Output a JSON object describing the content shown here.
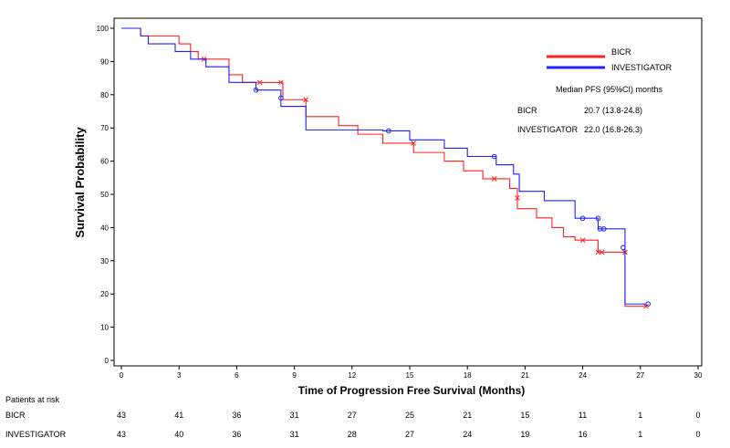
{
  "chart_data": {
    "type": "line",
    "step": true,
    "xlabel": "Time of Progression Free Survival (Months)",
    "ylabel": "Survival Probability",
    "xlim": [
      0,
      30
    ],
    "ylim": [
      0,
      100
    ],
    "xticks": [
      0,
      3,
      6,
      9,
      12,
      15,
      18,
      21,
      24,
      27,
      30
    ],
    "yticks": [
      0,
      10,
      20,
      30,
      40,
      50,
      60,
      70,
      80,
      90,
      100
    ],
    "grid": false,
    "legend_position": "top-right",
    "series": [
      {
        "name": "BICR",
        "color": "#ff2020",
        "x": [
          0,
          1.0,
          1.4,
          3.0,
          3.6,
          4.0,
          5.6,
          6.3,
          7.2,
          8.4,
          9.6,
          11.3,
          12.3,
          13.6,
          15.2,
          16.8,
          17.8,
          18.8,
          20.2,
          20.6,
          21.6,
          22.4,
          23.0,
          23.6,
          24.8,
          26.2,
          27.3
        ],
        "y": [
          100,
          97.7,
          97.7,
          95.3,
          93.0,
          90.7,
          86.0,
          83.7,
          83.7,
          78.5,
          73.4,
          70.7,
          68.1,
          65.4,
          62.6,
          60.0,
          57.1,
          54.7,
          51.8,
          45.7,
          42.9,
          40.0,
          37.2,
          36.2,
          32.6,
          16.3,
          16.3
        ],
        "censor_x": [
          4.3,
          7.2,
          8.3,
          9.6,
          15.2,
          19.4,
          20.6,
          24.0,
          24.8,
          25.0,
          26.2,
          27.3
        ],
        "censor_y": [
          90.7,
          83.7,
          83.7,
          78.5,
          65.4,
          54.7,
          48.9,
          36.2,
          32.6,
          32.6,
          32.6,
          16.3
        ]
      },
      {
        "name": "INVESTIGATOR",
        "color": "#2020ff",
        "x": [
          0,
          1.0,
          1.4,
          2.8,
          3.6,
          4.4,
          5.6,
          7.0,
          8.3,
          9.6,
          12.0,
          13.6,
          15.0,
          16.8,
          18.0,
          19.5,
          20.4,
          20.7,
          22.0,
          23.6,
          24.8,
          26.2,
          27.3
        ],
        "y": [
          100,
          97.7,
          95.3,
          93.0,
          90.7,
          88.4,
          83.7,
          81.4,
          76.5,
          69.4,
          69.4,
          69.1,
          66.4,
          63.9,
          61.4,
          58.9,
          56.1,
          50.9,
          48.1,
          42.8,
          39.6,
          17.0,
          17.0
        ],
        "censor_x": [
          7.0,
          8.3,
          13.9,
          19.4,
          24.0,
          24.8,
          24.9,
          25.1,
          26.1,
          27.4
        ],
        "censor_y": [
          81.4,
          79.0,
          69.1,
          61.4,
          42.8,
          42.8,
          39.6,
          39.6,
          34.0,
          17.0
        ]
      }
    ],
    "legend": [
      "BICR",
      "INVESTIGATOR"
    ],
    "annotations": {
      "median_title": "Median PFS (95%CI) months",
      "rows": [
        {
          "label": "BICR",
          "value": "20.7 (13.8-24.8)"
        },
        {
          "label": "INVESTIGATOR",
          "value": "22.0 (16.8-26.3)"
        }
      ]
    },
    "at_risk": {
      "title": "Patients at risk",
      "times": [
        0,
        3,
        6,
        9,
        12,
        15,
        18,
        21,
        24,
        27,
        30
      ],
      "rows": [
        {
          "label": "BICR",
          "values": [
            "43",
            "41",
            "36",
            "31",
            "27",
            "25",
            "21",
            "15",
            "11",
            "1",
            "0"
          ]
        },
        {
          "label": "INVESTIGATOR",
          "values": [
            "43",
            "40",
            "36",
            "31",
            "28",
            "27",
            "24",
            "19",
            "16",
            "1",
            "0"
          ]
        }
      ]
    }
  }
}
